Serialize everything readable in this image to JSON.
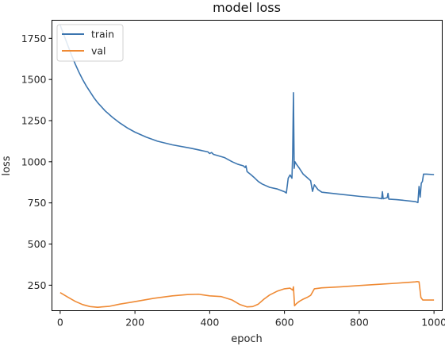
{
  "chart_data": {
    "type": "line",
    "title": "model loss",
    "xlabel": "epoch",
    "ylabel": "loss",
    "xlim": [
      -22,
      1022
    ],
    "ylim": [
      95,
      1860
    ],
    "xticks": [
      0,
      200,
      400,
      600,
      800,
      1000
    ],
    "yticks": [
      250,
      500,
      750,
      1000,
      1250,
      1500,
      1750
    ],
    "grid": false,
    "legend_position": "top-left",
    "series": [
      {
        "name": "train",
        "color": "#3b75af",
        "points": [
          [
            0,
            1830
          ],
          [
            5,
            1800
          ],
          [
            10,
            1770
          ],
          [
            20,
            1710
          ],
          [
            30,
            1650
          ],
          [
            40,
            1595
          ],
          [
            50,
            1545
          ],
          [
            60,
            1500
          ],
          [
            70,
            1460
          ],
          [
            80,
            1425
          ],
          [
            90,
            1390
          ],
          [
            100,
            1360
          ],
          [
            120,
            1310
          ],
          [
            140,
            1270
          ],
          [
            160,
            1235
          ],
          [
            180,
            1205
          ],
          [
            200,
            1180
          ],
          [
            230,
            1150
          ],
          [
            260,
            1125
          ],
          [
            300,
            1103
          ],
          [
            350,
            1082
          ],
          [
            395,
            1060
          ],
          [
            400,
            1050
          ],
          [
            405,
            1056
          ],
          [
            410,
            1045
          ],
          [
            440,
            1025
          ],
          [
            460,
            1000
          ],
          [
            475,
            985
          ],
          [
            490,
            975
          ],
          [
            495,
            965
          ],
          [
            497,
            975
          ],
          [
            500,
            940
          ],
          [
            510,
            922
          ],
          [
            520,
            902
          ],
          [
            530,
            880
          ],
          [
            540,
            865
          ],
          [
            560,
            845
          ],
          [
            580,
            835
          ],
          [
            600,
            818
          ],
          [
            605,
            810
          ],
          [
            610,
            900
          ],
          [
            615,
            920
          ],
          [
            620,
            900
          ],
          [
            622,
            1050
          ],
          [
            624,
            1420
          ],
          [
            626,
            960
          ],
          [
            628,
            1000
          ],
          [
            632,
            985
          ],
          [
            640,
            960
          ],
          [
            650,
            925
          ],
          [
            660,
            905
          ],
          [
            670,
            885
          ],
          [
            675,
            820
          ],
          [
            680,
            860
          ],
          [
            690,
            830
          ],
          [
            700,
            815
          ],
          [
            740,
            805
          ],
          [
            800,
            790
          ],
          [
            850,
            780
          ],
          [
            860,
            775
          ],
          [
            862,
            818
          ],
          [
            864,
            775
          ],
          [
            875,
            782
          ],
          [
            877,
            808
          ],
          [
            879,
            773
          ],
          [
            900,
            770
          ],
          [
            950,
            758
          ],
          [
            957,
            752
          ],
          [
            960,
            850
          ],
          [
            963,
            785
          ],
          [
            966,
            870
          ],
          [
            969,
            880
          ],
          [
            972,
            925
          ],
          [
            980,
            925
          ],
          [
            1000,
            922
          ]
        ]
      },
      {
        "name": "val",
        "color": "#ef8a34",
        "points": [
          [
            0,
            205
          ],
          [
            20,
            178
          ],
          [
            40,
            152
          ],
          [
            60,
            132
          ],
          [
            80,
            120
          ],
          [
            100,
            116
          ],
          [
            130,
            121
          ],
          [
            160,
            135
          ],
          [
            200,
            150
          ],
          [
            250,
            170
          ],
          [
            300,
            185
          ],
          [
            340,
            193
          ],
          [
            370,
            195
          ],
          [
            400,
            185
          ],
          [
            430,
            181
          ],
          [
            460,
            160
          ],
          [
            480,
            133
          ],
          [
            500,
            118
          ],
          [
            515,
            120
          ],
          [
            530,
            135
          ],
          [
            545,
            165
          ],
          [
            560,
            190
          ],
          [
            580,
            213
          ],
          [
            600,
            228
          ],
          [
            615,
            232
          ],
          [
            622,
            220
          ],
          [
            624,
            240
          ],
          [
            627,
            125
          ],
          [
            632,
            138
          ],
          [
            640,
            152
          ],
          [
            650,
            165
          ],
          [
            660,
            175
          ],
          [
            670,
            188
          ],
          [
            680,
            228
          ],
          [
            700,
            234
          ],
          [
            750,
            240
          ],
          [
            800,
            248
          ],
          [
            850,
            255
          ],
          [
            900,
            262
          ],
          [
            950,
            270
          ],
          [
            955,
            272
          ],
          [
            960,
            270
          ],
          [
            965,
            175
          ],
          [
            970,
            160
          ],
          [
            1000,
            160
          ]
        ]
      }
    ]
  }
}
